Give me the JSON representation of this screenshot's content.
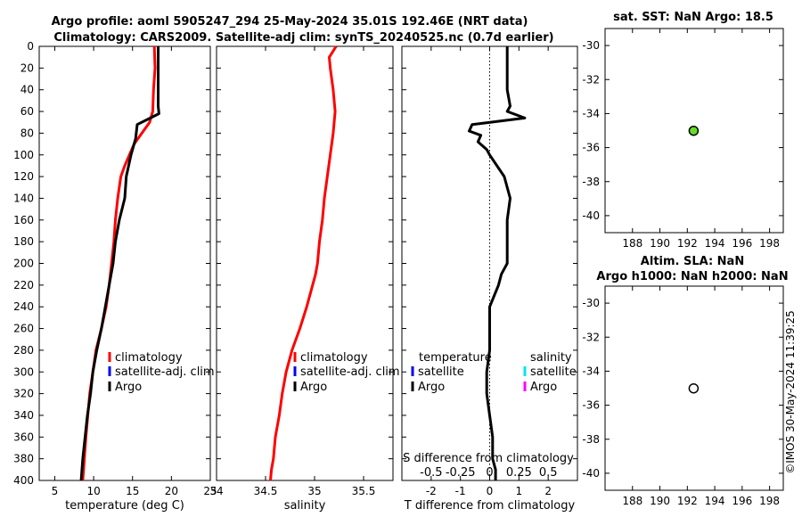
{
  "title_line1": "Argo profile: aoml 5905247_294 25-May-2024 35.01S 192.46E (NRT data)",
  "title_line2": "Climatology: CARS2009. Satellite-adj clim: synTS_20240525.nc (0.7d earlier)",
  "footer": "©IMOS 30-May-2024 11:39:25",
  "colors": {
    "climatology": "#ff0000",
    "satellite_adj": "#0000ff",
    "argo": "#000000",
    "sal_satellite": "#00e5ee",
    "sal_argo": "#ff00ff",
    "marker_fill": "#66dd22"
  },
  "chart_data": [
    {
      "type": "line",
      "id": "temperature",
      "xlabel": "temperature (deg C)",
      "xlim": [
        3,
        25
      ],
      "ylim": [
        0,
        400
      ],
      "xticks": [
        5,
        10,
        15,
        20,
        25
      ],
      "xtick_labels": [
        "5",
        "10",
        "15",
        "20",
        "25"
      ],
      "yticks": [
        0,
        20,
        40,
        60,
        80,
        100,
        120,
        140,
        160,
        180,
        200,
        220,
        240,
        260,
        280,
        300,
        320,
        340,
        360,
        380,
        400
      ],
      "legend": [
        "climatology",
        "satellite-adj. clim",
        "Argo"
      ],
      "series": [
        {
          "name": "climatology",
          "color_key": "climatology",
          "x": [
            17.8,
            17.9,
            17.7,
            17.6,
            17.2,
            16.2,
            15.2,
            14.6,
            14.0,
            13.5,
            13.1,
            12.8,
            12.6,
            12.3,
            12.0,
            11.6,
            11.0,
            10.3,
            9.9,
            9.5,
            9.0,
            8.6
          ],
          "y": [
            0,
            20,
            40,
            60,
            70,
            80,
            90,
            100,
            110,
            120,
            140,
            160,
            180,
            200,
            220,
            240,
            260,
            280,
            300,
            320,
            360,
            400
          ]
        },
        {
          "name": "Argo",
          "color_key": "argo",
          "x": [
            18.3,
            18.3,
            18.3,
            18.3,
            18.4,
            17.0,
            15.6,
            15.4,
            14.8,
            14.2,
            14.0,
            13.3,
            12.8,
            12.5,
            12.0,
            11.5,
            11.0,
            10.4,
            9.9,
            9.6,
            9.2,
            8.9,
            8.6,
            8.4
          ],
          "y": [
            0,
            20,
            40,
            55,
            62,
            67,
            72,
            85,
            100,
            120,
            140,
            160,
            180,
            200,
            220,
            240,
            260,
            280,
            300,
            320,
            340,
            360,
            380,
            400
          ]
        }
      ]
    },
    {
      "type": "line",
      "id": "salinity",
      "xlabel": "salinity",
      "xlim": [
        34,
        35.8
      ],
      "ylim": [
        0,
        400
      ],
      "xticks": [
        34,
        34.5,
        35,
        35.5
      ],
      "xtick_labels": [
        "34",
        "34.5",
        "35",
        "35.5"
      ],
      "legend": [
        "climatology",
        "satellite-adj. clim",
        "Argo"
      ],
      "series": [
        {
          "name": "climatology",
          "color_key": "climatology",
          "x": [
            35.22,
            35.15,
            35.16,
            35.19,
            35.21,
            35.19,
            35.16,
            35.13,
            35.1,
            35.08,
            35.05,
            35.03,
            35.01,
            34.98,
            34.92,
            34.85,
            34.77,
            34.71,
            34.67,
            34.64,
            34.6,
            34.58,
            34.56,
            34.55
          ],
          "y": [
            0,
            10,
            20,
            40,
            60,
            80,
            100,
            120,
            140,
            160,
            180,
            200,
            210,
            220,
            240,
            260,
            280,
            300,
            320,
            340,
            360,
            380,
            390,
            400
          ]
        }
      ]
    },
    {
      "type": "line",
      "id": "difference",
      "xlabel": "T difference from climatology",
      "xlabel_top": "S difference from climatology",
      "xlim": [
        -3,
        3
      ],
      "ylim": [
        0,
        400
      ],
      "xticks": [
        -2,
        -1,
        0,
        1,
        2
      ],
      "xtick_labels": [
        "-2",
        "-1",
        "0",
        "1",
        "2"
      ],
      "s_tick_labels": [
        "-0.5",
        "-0.25",
        "0",
        "0.25",
        "0.5"
      ],
      "legend_temperature": [
        "temperature",
        "satellite",
        "Argo"
      ],
      "legend_salinity": [
        "salinity",
        "satellite",
        "Argo"
      ],
      "series": [
        {
          "name": "T difference Argo",
          "color_key": "argo",
          "x": [
            0.6,
            0.6,
            0.6,
            0.7,
            0.6,
            1.2,
            -0.6,
            -0.7,
            -0.3,
            -0.4,
            -0.1,
            0.0,
            0.5,
            0.7,
            0.6,
            0.6,
            0.6,
            0.4,
            0.3,
            0.0,
            0.0,
            0.0,
            -0.1,
            -0.1,
            0.0,
            0.1,
            0.1,
            0.2,
            0.2
          ],
          "y": [
            0,
            20,
            40,
            55,
            60,
            66,
            72,
            78,
            82,
            88,
            95,
            100,
            120,
            140,
            160,
            180,
            200,
            210,
            220,
            240,
            260,
            280,
            300,
            320,
            340,
            360,
            380,
            390,
            400
          ]
        }
      ]
    },
    {
      "type": "scatter",
      "id": "sst_map",
      "title": "sat. SST: NaN Argo: 18.5",
      "xlim": [
        186,
        199
      ],
      "ylim": [
        -41,
        -29
      ],
      "xticks": [
        188,
        190,
        192,
        194,
        196,
        198
      ],
      "xtick_labels": [
        "188",
        "190",
        "192",
        "194",
        "196",
        "198"
      ],
      "yticks": [
        -30,
        -32,
        -34,
        -36,
        -38,
        -40
      ],
      "ytick_labels": [
        "-30",
        "-32",
        "-34",
        "-36",
        "-38",
        "-40"
      ],
      "points": [
        {
          "x": 192.46,
          "y": -35.01,
          "color_key": "marker_fill"
        }
      ]
    },
    {
      "type": "scatter",
      "id": "sla_map",
      "title": "Altim. SLA: NaN",
      "subtitle": "Argo h1000: NaN h2000: NaN",
      "xlim": [
        186,
        199
      ],
      "ylim": [
        -41,
        -29
      ],
      "xticks": [
        188,
        190,
        192,
        194,
        196,
        198
      ],
      "xtick_labels": [
        "188",
        "190",
        "192",
        "194",
        "196",
        "198"
      ],
      "yticks": [
        -30,
        -32,
        -34,
        -36,
        -38,
        -40
      ],
      "ytick_labels": [
        "-30",
        "-32",
        "-34",
        "-36",
        "-38",
        "-40"
      ],
      "points": [
        {
          "x": 192.46,
          "y": -35.01,
          "color_key": "none"
        }
      ]
    }
  ]
}
